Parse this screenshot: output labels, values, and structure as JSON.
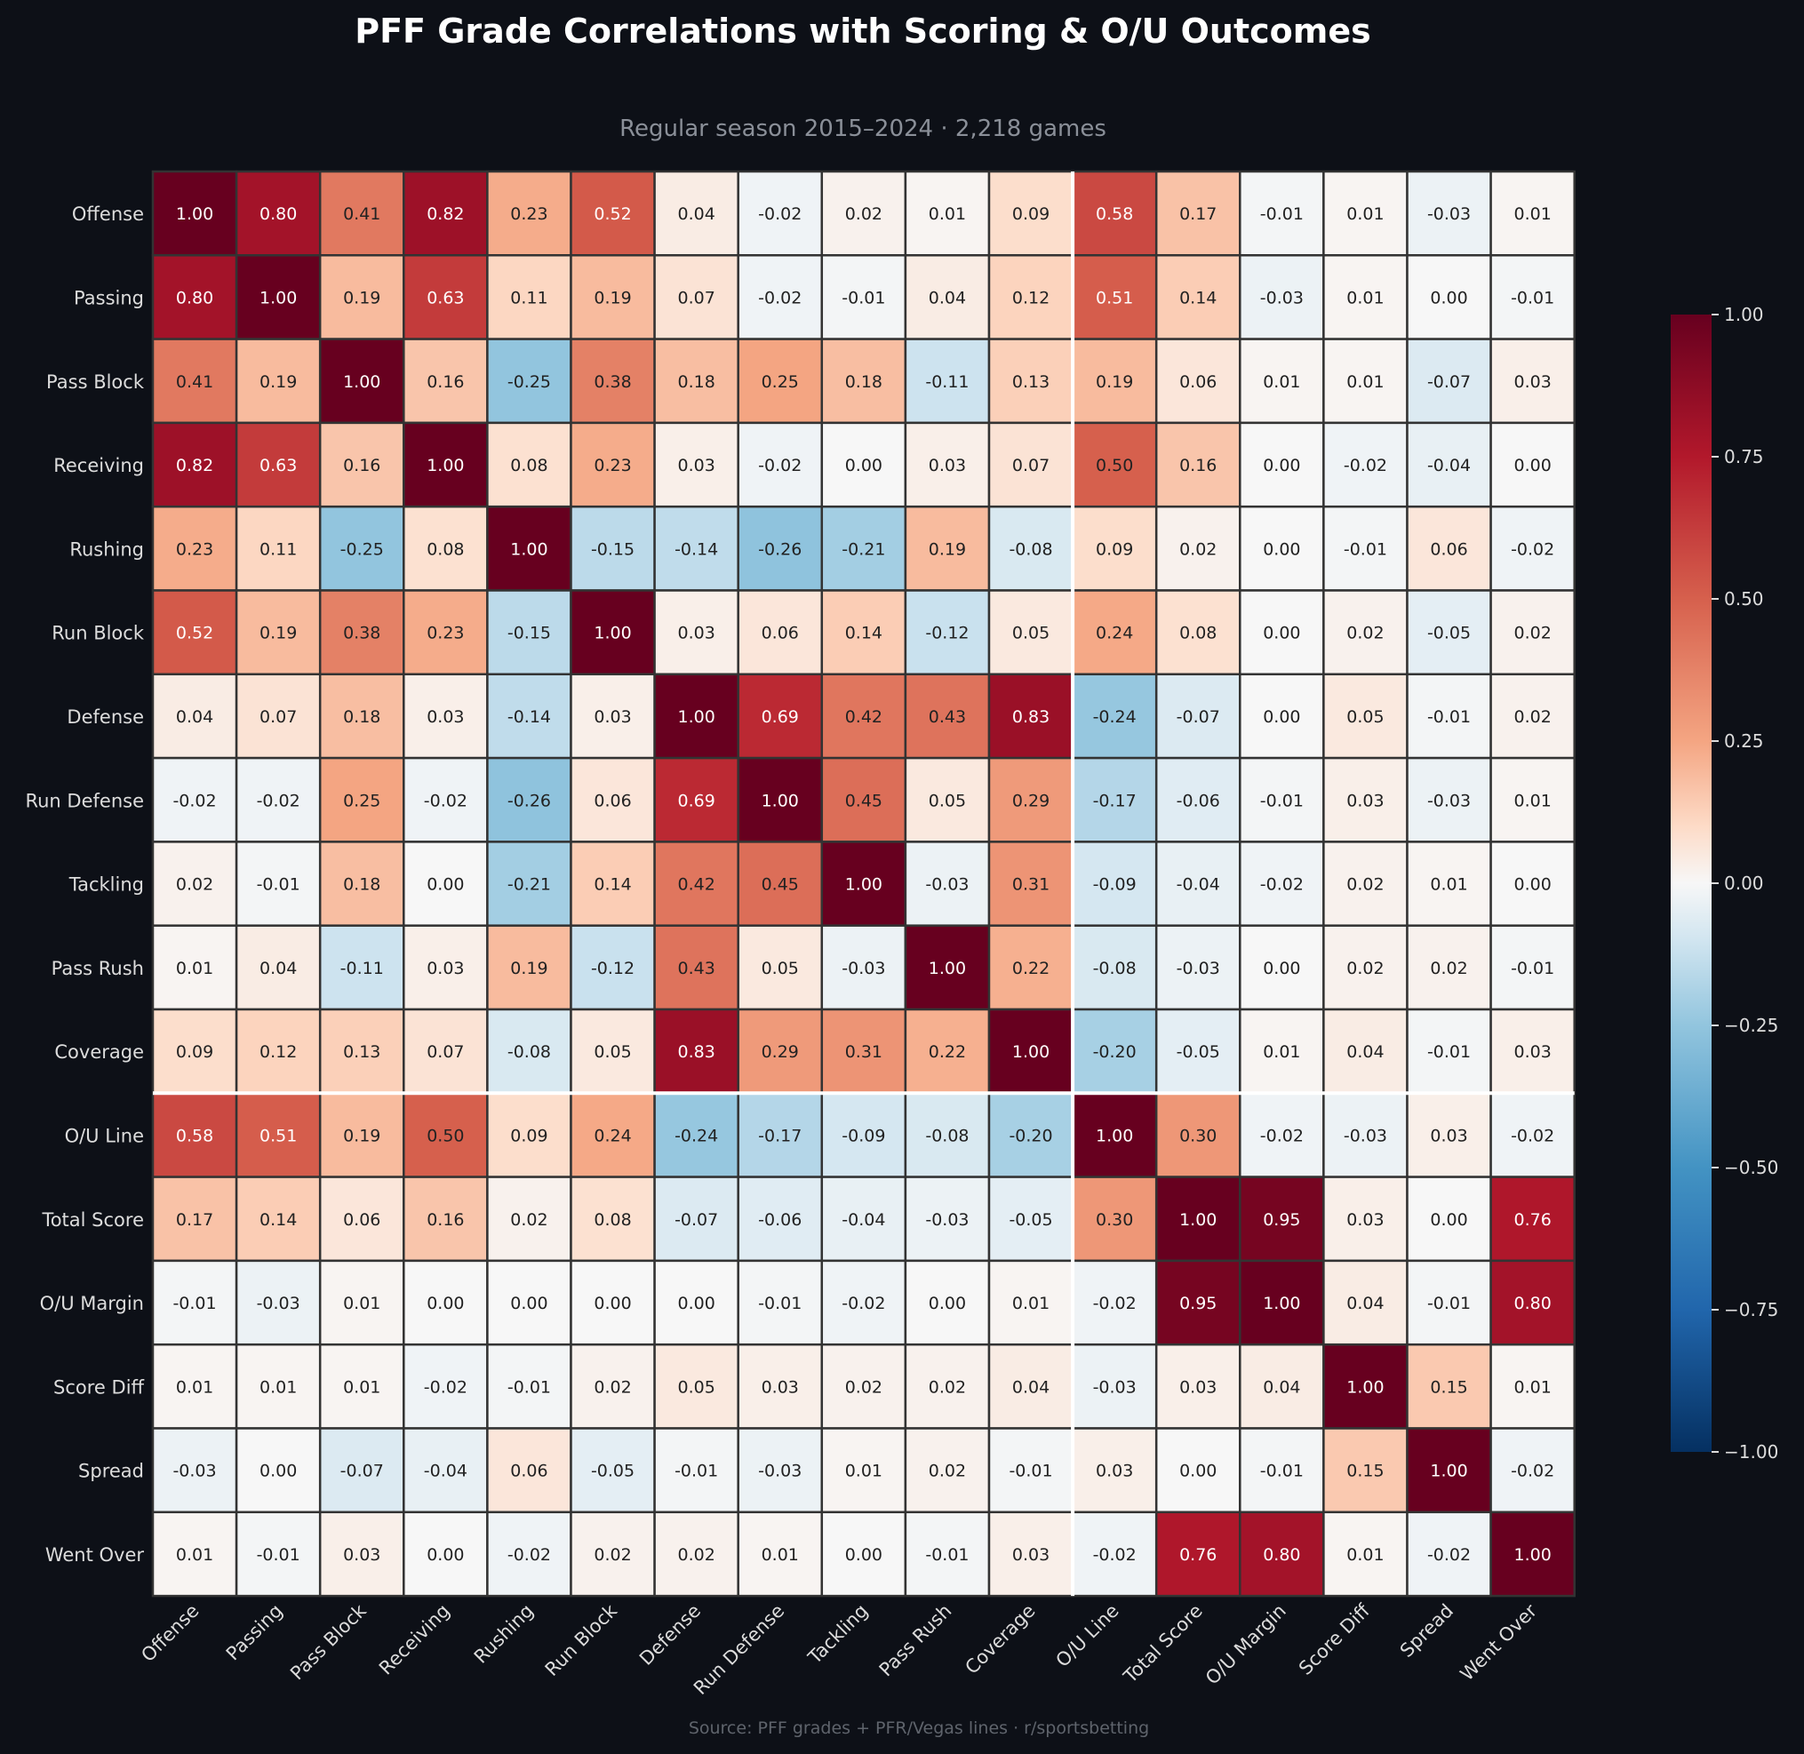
{
  "chart_data": {
    "type": "heatmap",
    "title": "PFF Grade Correlations with Scoring & O/U Outcomes",
    "subtitle": "Regular season 2015–2024 · 2,218 games",
    "source": "Source: PFF grades + PFR/Vegas lines · r/sportsbetting",
    "labels": [
      "Offense",
      "Passing",
      "Pass Block",
      "Receiving",
      "Rushing",
      "Run Block",
      "Defense",
      "Run Defense",
      "Tackling",
      "Pass Rush",
      "Coverage",
      "O/U Line",
      "Total Score",
      "O/U Margin",
      "Score Diff",
      "Spread",
      "Went Over"
    ],
    "matrix": [
      [
        1.0,
        0.8,
        0.41,
        0.82,
        0.23,
        0.52,
        0.04,
        -0.02,
        0.02,
        0.01,
        0.09,
        0.58,
        0.17,
        -0.01,
        0.01,
        -0.03,
        0.01
      ],
      [
        0.8,
        1.0,
        0.19,
        0.63,
        0.11,
        0.19,
        0.07,
        -0.02,
        -0.01,
        0.04,
        0.12,
        0.51,
        0.14,
        -0.03,
        0.01,
        -0.0,
        -0.01
      ],
      [
        0.41,
        0.19,
        1.0,
        0.16,
        -0.25,
        0.38,
        0.18,
        0.25,
        0.18,
        -0.11,
        0.13,
        0.19,
        0.06,
        0.01,
        0.01,
        -0.07,
        0.03
      ],
      [
        0.82,
        0.63,
        0.16,
        1.0,
        0.08,
        0.23,
        0.03,
        -0.02,
        -0.0,
        0.03,
        0.07,
        0.5,
        0.16,
        0.0,
        -0.02,
        -0.04,
        0.0
      ],
      [
        0.23,
        0.11,
        -0.25,
        0.08,
        1.0,
        -0.15,
        -0.14,
        -0.26,
        -0.21,
        0.19,
        -0.08,
        0.09,
        0.02,
        -0.0,
        -0.01,
        0.06,
        -0.02
      ],
      [
        0.52,
        0.19,
        0.38,
        0.23,
        -0.15,
        1.0,
        0.03,
        0.06,
        0.14,
        -0.12,
        0.05,
        0.24,
        0.08,
        0.0,
        0.02,
        -0.05,
        0.02
      ],
      [
        0.04,
        0.07,
        0.18,
        0.03,
        -0.14,
        0.03,
        1.0,
        0.69,
        0.42,
        0.43,
        0.83,
        -0.24,
        -0.07,
        0.0,
        0.05,
        -0.01,
        0.02
      ],
      [
        -0.02,
        -0.02,
        0.25,
        -0.02,
        -0.26,
        0.06,
        0.69,
        1.0,
        0.45,
        0.05,
        0.29,
        -0.17,
        -0.06,
        -0.01,
        0.03,
        -0.03,
        0.01
      ],
      [
        0.02,
        -0.01,
        0.18,
        -0.0,
        -0.21,
        0.14,
        0.42,
        0.45,
        1.0,
        -0.03,
        0.31,
        -0.09,
        -0.04,
        -0.02,
        0.02,
        0.01,
        0.0
      ],
      [
        0.01,
        0.04,
        -0.11,
        0.03,
        0.19,
        -0.12,
        0.43,
        0.05,
        -0.03,
        1.0,
        0.22,
        -0.08,
        -0.03,
        -0.0,
        0.02,
        0.02,
        -0.01
      ],
      [
        0.09,
        0.12,
        0.13,
        0.07,
        -0.08,
        0.05,
        0.83,
        0.29,
        0.31,
        0.22,
        1.0,
        -0.2,
        -0.05,
        0.01,
        0.04,
        -0.01,
        0.03
      ],
      [
        0.58,
        0.51,
        0.19,
        0.5,
        0.09,
        0.24,
        -0.24,
        -0.17,
        -0.09,
        -0.08,
        -0.2,
        1.0,
        0.3,
        -0.02,
        -0.03,
        0.03,
        -0.02
      ],
      [
        0.17,
        0.14,
        0.06,
        0.16,
        0.02,
        0.08,
        -0.07,
        -0.06,
        -0.04,
        -0.03,
        -0.05,
        0.3,
        1.0,
        0.95,
        0.03,
        0.0,
        0.76
      ],
      [
        -0.01,
        -0.03,
        0.01,
        0.0,
        -0.0,
        0.0,
        0.0,
        -0.01,
        -0.02,
        -0.0,
        0.01,
        -0.02,
        0.95,
        1.0,
        0.04,
        -0.01,
        0.8
      ],
      [
        0.01,
        0.01,
        0.01,
        -0.02,
        -0.01,
        0.02,
        0.05,
        0.03,
        0.02,
        0.02,
        0.04,
        -0.03,
        0.03,
        0.04,
        1.0,
        0.15,
        0.01
      ],
      [
        -0.03,
        -0.0,
        -0.07,
        -0.04,
        0.06,
        -0.05,
        -0.01,
        -0.03,
        0.01,
        0.02,
        -0.01,
        0.03,
        0.0,
        -0.01,
        0.15,
        1.0,
        -0.02
      ],
      [
        0.01,
        -0.01,
        0.03,
        0.0,
        -0.02,
        0.02,
        0.02,
        0.01,
        0.0,
        -0.01,
        0.03,
        -0.02,
        0.76,
        0.8,
        0.01,
        -0.02,
        1.0
      ]
    ],
    "value_range": [
      -1.0,
      1.0
    ],
    "colorbar_ticks": [
      "1.00",
      "0.75",
      "0.50",
      "0.25",
      "0.00",
      "−0.25",
      "−0.50",
      "−0.75",
      "−1.00"
    ],
    "colormap": "RdBu_r",
    "separator_after_index": 10
  }
}
